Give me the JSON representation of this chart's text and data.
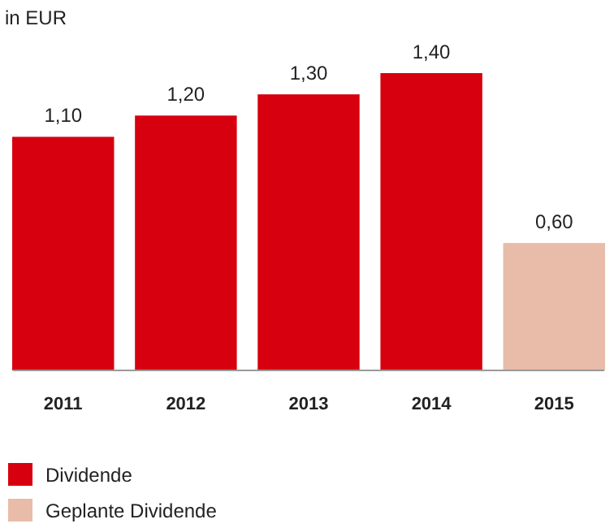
{
  "chart_data": {
    "type": "bar",
    "ylabel": "in EUR",
    "categories": [
      "2011",
      "2012",
      "2013",
      "2014",
      "2015"
    ],
    "series": [
      {
        "name": "Dividende",
        "color": "#d7000f",
        "values": [
          1.1,
          1.2,
          1.3,
          1.4,
          null
        ],
        "value_labels": [
          "1,10",
          "1,20",
          "1,30",
          "1,40",
          null
        ]
      },
      {
        "name": "Geplante Dividende",
        "color": "#e8bca9",
        "values": [
          null,
          null,
          null,
          null,
          0.6
        ],
        "value_labels": [
          null,
          null,
          null,
          null,
          "0,60"
        ]
      }
    ],
    "legend": "bottom"
  }
}
